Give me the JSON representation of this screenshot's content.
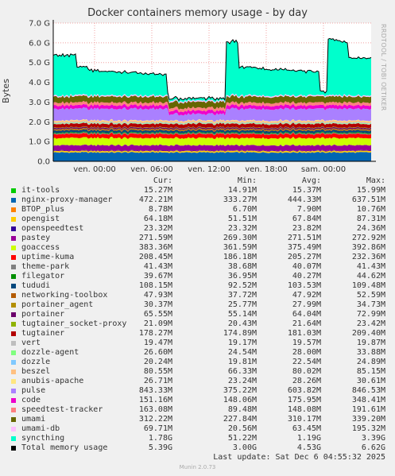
{
  "chart_data": {
    "type": "area",
    "title": "Docker containers memory usage - by day",
    "ylabel": "Bytes",
    "side_text": "RRDTOOL / TOBI OETIKER",
    "ylim": [
      0,
      7.0
    ],
    "y_ticks": [
      "0.0",
      "1.0 G",
      "2.0 G",
      "3.0 G",
      "4.0 G",
      "5.0 G",
      "6.0 G",
      "7.0 G"
    ],
    "x_ticks": [
      "ven. 00:00",
      "ven. 06:00",
      "ven. 12:00",
      "ven. 18:00",
      "sam. 00:00"
    ],
    "columns": [
      "Cur:",
      "Min:",
      "Avg:",
      "Max:"
    ],
    "series": [
      {
        "name": "it-tools",
        "color": "#00cc00",
        "values": [
          "15.27M",
          "14.91M",
          "15.37M",
          "15.99M"
        ]
      },
      {
        "name": "nginx-proxy-manager",
        "color": "#0066b3",
        "values": [
          "472.21M",
          "333.27M",
          "444.33M",
          "637.51M"
        ]
      },
      {
        "name": "BTOP_plus",
        "color": "#ff8000",
        "values": [
          "8.78M",
          "6.70M",
          "7.90M",
          "10.76M"
        ]
      },
      {
        "name": "opengist",
        "color": "#ffcc00",
        "values": [
          "64.18M",
          "51.51M",
          "67.84M",
          "87.31M"
        ]
      },
      {
        "name": "openspeedtest",
        "color": "#330099",
        "values": [
          "23.32M",
          "23.32M",
          "23.82M",
          "24.36M"
        ]
      },
      {
        "name": "pastey",
        "color": "#990099",
        "values": [
          "271.59M",
          "269.30M",
          "271.51M",
          "272.92M"
        ]
      },
      {
        "name": "goaccess",
        "color": "#ccff00",
        "values": [
          "383.36M",
          "361.59M",
          "375.49M",
          "392.86M"
        ]
      },
      {
        "name": "uptime-kuma",
        "color": "#ff0000",
        "values": [
          "208.45M",
          "186.18M",
          "205.27M",
          "232.36M"
        ]
      },
      {
        "name": "theme-park",
        "color": "#808080",
        "values": [
          "41.43M",
          "38.68M",
          "40.07M",
          "41.43M"
        ]
      },
      {
        "name": "filegator",
        "color": "#008f00",
        "values": [
          "39.67M",
          "36.95M",
          "40.27M",
          "44.62M"
        ]
      },
      {
        "name": "tududi",
        "color": "#00487d",
        "values": [
          "108.15M",
          "92.52M",
          "103.53M",
          "109.48M"
        ]
      },
      {
        "name": "networking-toolbox",
        "color": "#b35a00",
        "values": [
          "47.93M",
          "37.72M",
          "47.92M",
          "52.59M"
        ]
      },
      {
        "name": "portainer_agent",
        "color": "#b38f00",
        "values": [
          "30.37M",
          "25.77M",
          "27.99M",
          "34.73M"
        ]
      },
      {
        "name": "portainer",
        "color": "#6b006b",
        "values": [
          "65.55M",
          "55.14M",
          "64.04M",
          "72.99M"
        ]
      },
      {
        "name": "tugtainer_socket-proxy",
        "color": "#8fb300",
        "values": [
          "21.09M",
          "20.43M",
          "21.64M",
          "23.42M"
        ]
      },
      {
        "name": "tugtainer",
        "color": "#b30000",
        "values": [
          "178.27M",
          "174.89M",
          "181.03M",
          "209.40M"
        ]
      },
      {
        "name": "vert",
        "color": "#bebebe",
        "values": [
          "19.47M",
          "19.17M",
          "19.57M",
          "19.87M"
        ]
      },
      {
        "name": "dozzle-agent",
        "color": "#80ff80",
        "values": [
          "26.60M",
          "24.54M",
          "28.00M",
          "33.88M"
        ]
      },
      {
        "name": "dozzle",
        "color": "#80c9ff",
        "values": [
          "20.24M",
          "19.81M",
          "22.54M",
          "24.89M"
        ]
      },
      {
        "name": "beszel",
        "color": "#ffc080",
        "values": [
          "80.55M",
          "66.33M",
          "80.02M",
          "85.15M"
        ]
      },
      {
        "name": "anubis-apache",
        "color": "#ffe680",
        "values": [
          "26.71M",
          "23.24M",
          "28.26M",
          "30.61M"
        ]
      },
      {
        "name": "pulse",
        "color": "#aa80ff",
        "values": [
          "843.33M",
          "375.22M",
          "603.82M",
          "846.53M"
        ]
      },
      {
        "name": "code",
        "color": "#ee00cc",
        "values": [
          "151.16M",
          "148.06M",
          "175.95M",
          "348.41M"
        ]
      },
      {
        "name": "speedtest-tracker",
        "color": "#ff8080",
        "values": [
          "163.08M",
          "89.48M",
          "148.08M",
          "191.61M"
        ]
      },
      {
        "name": "umami",
        "color": "#666600",
        "values": [
          "312.22M",
          "227.84M",
          "310.17M",
          "339.20M"
        ]
      },
      {
        "name": "umami-db",
        "color": "#ffbfff",
        "values": [
          "69.71M",
          "20.56M",
          "63.45M",
          "195.32M"
        ]
      },
      {
        "name": "syncthing",
        "color": "#00ffcc",
        "values": [
          "1.78G",
          "51.22M",
          "1.19G",
          "3.39G"
        ]
      },
      {
        "name": "Total memory usage",
        "color": "#000000",
        "values": [
          "5.39G",
          "3.00G",
          "4.53G",
          "6.62G"
        ]
      }
    ],
    "last_update": "Last update: Sat Dec  6 04:55:32 2025",
    "footer": "Munin 2.0.73"
  }
}
